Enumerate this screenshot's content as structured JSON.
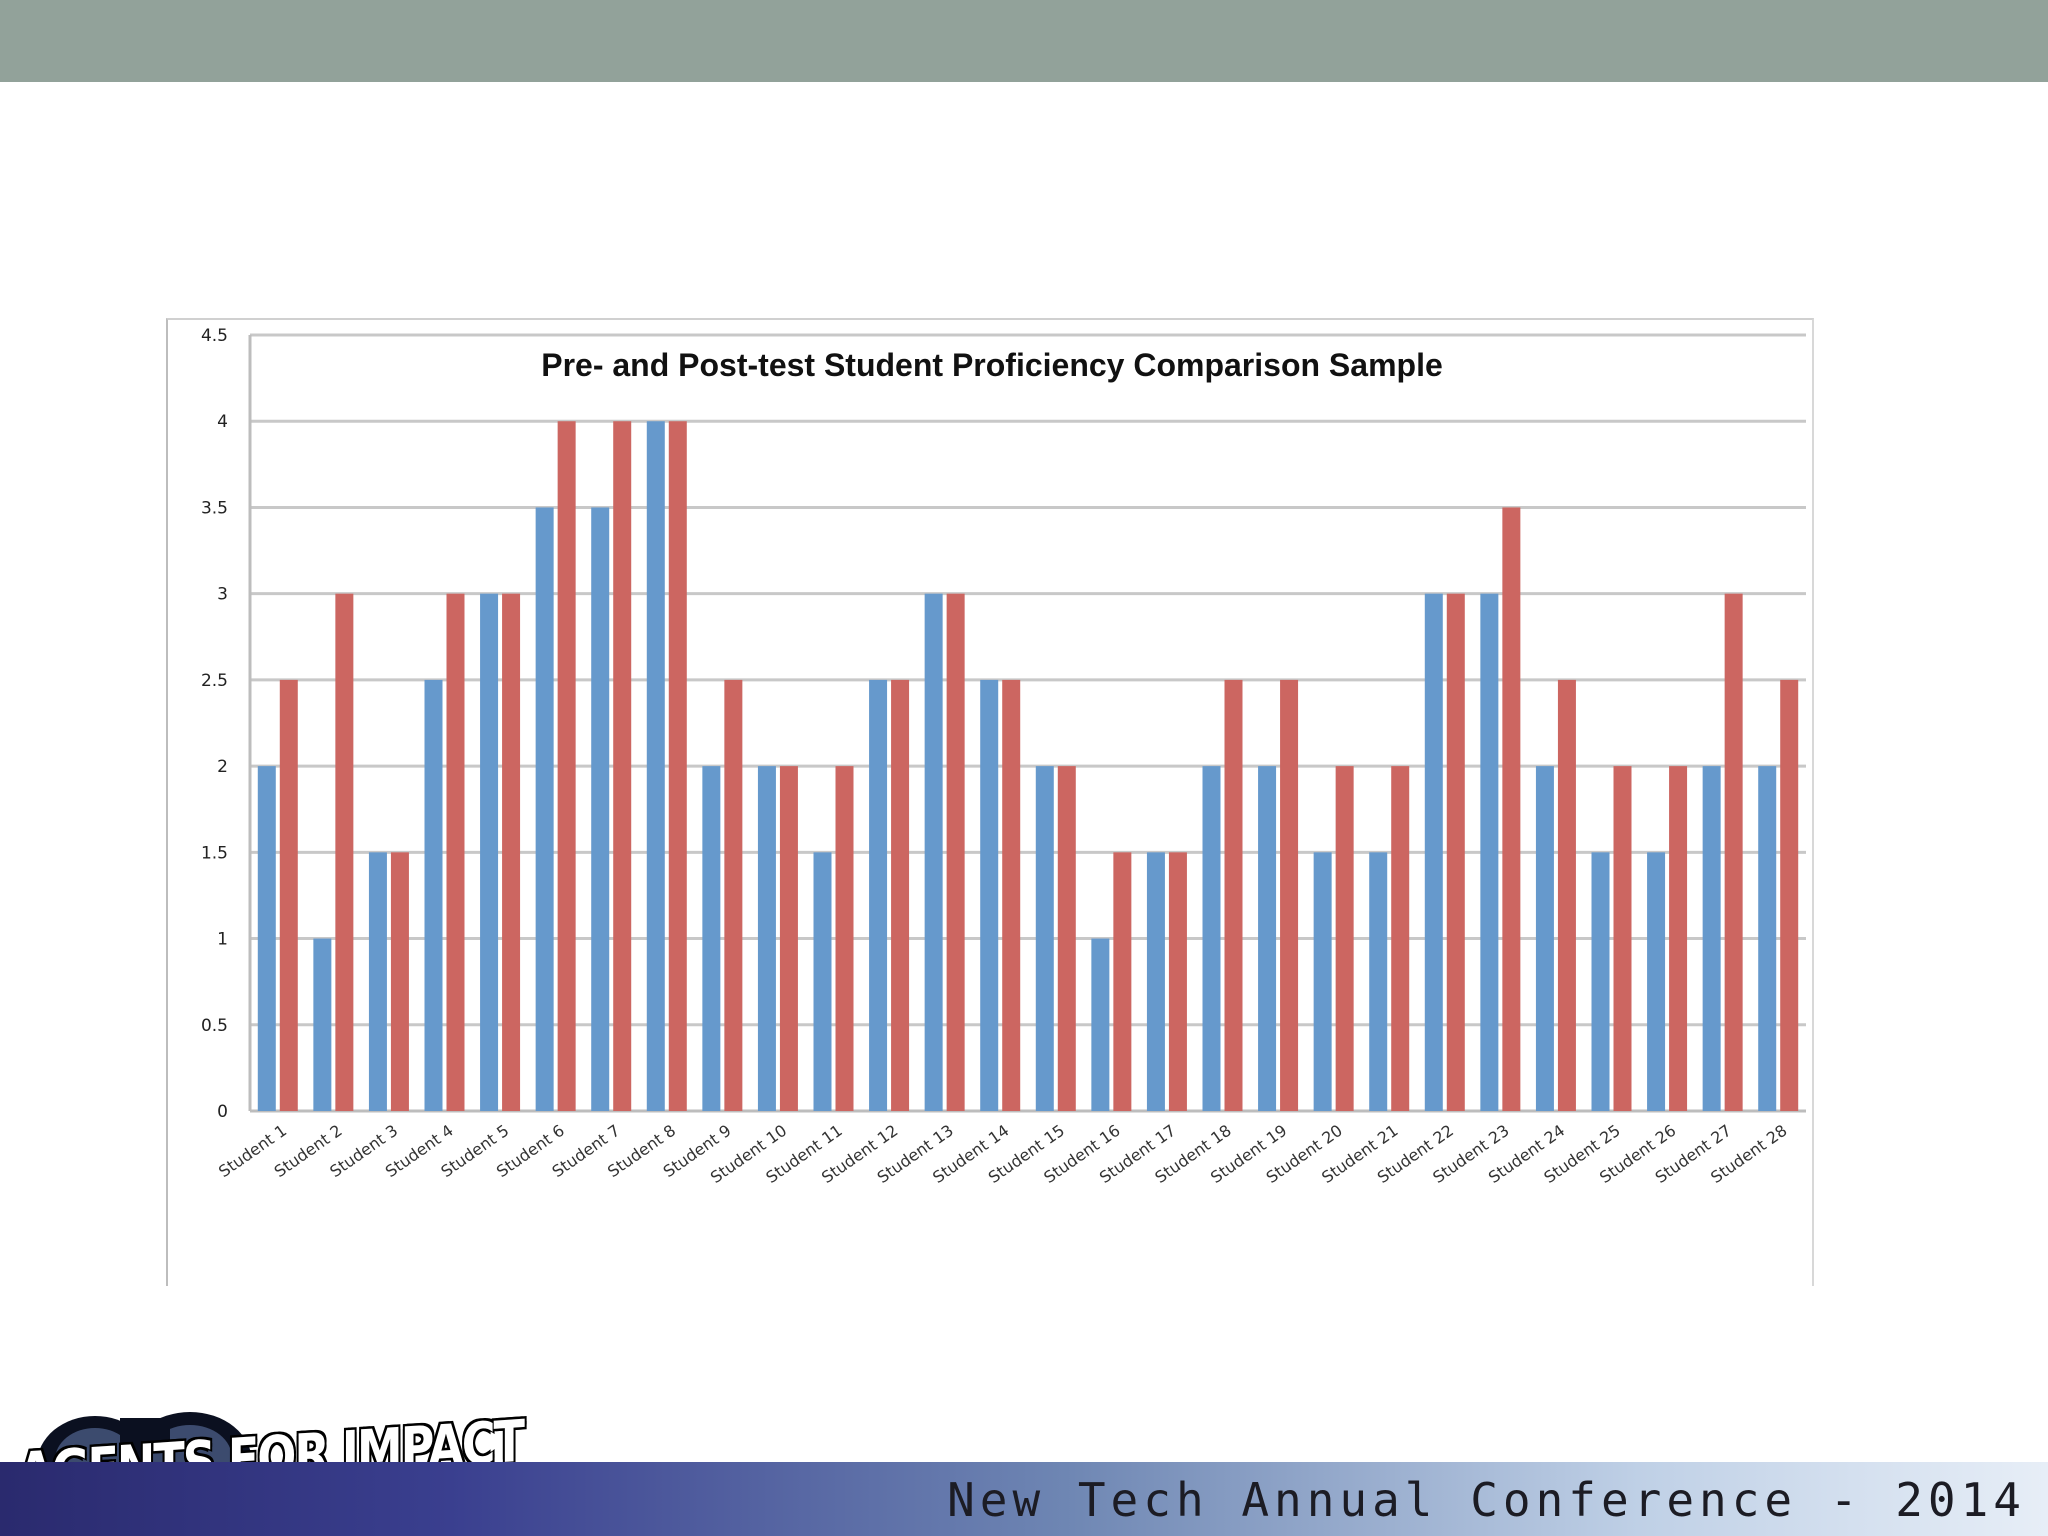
{
  "chart_data": {
    "type": "bar",
    "title": "Pre- and Post-test Student Proficiency Comparison Sample",
    "xlabel": "",
    "ylabel": "",
    "ylim": [
      0,
      4.5
    ],
    "yticks": [
      "0",
      "0.5",
      "1",
      "1.5",
      "2",
      "2.5",
      "3",
      "3.5",
      "4",
      "4.5"
    ],
    "grid": true,
    "legend": "none",
    "categories": [
      "Student 1",
      "Student 2",
      "Student 3",
      "Student 4",
      "Student 5",
      "Student 6",
      "Student 7",
      "Student 8",
      "Student 9",
      "Student 10",
      "Student 11",
      "Student 12",
      "Student 13",
      "Student 14",
      "Student 15",
      "Student 16",
      "Student 17",
      "Student 18",
      "Student 19",
      "Student 20",
      "Student 21",
      "Student 22",
      "Student 23",
      "Student 24",
      "Student 25",
      "Student 26",
      "Student 27",
      "Student 28"
    ],
    "series": [
      {
        "color": "#6699cc",
        "values": [
          2,
          1,
          1.5,
          2.5,
          3,
          3.5,
          3.5,
          4,
          2,
          2,
          1.5,
          2.5,
          3,
          2.5,
          2,
          1,
          1.5,
          2,
          2,
          1.5,
          1.5,
          3,
          3,
          2,
          1.5,
          1.5,
          2,
          2
        ]
      },
      {
        "color": "#cc6661",
        "values": [
          2.5,
          3,
          1.5,
          3,
          3,
          4,
          4,
          4,
          2.5,
          2,
          2,
          2.5,
          3,
          2.5,
          2,
          1.5,
          1.5,
          2.5,
          2.5,
          2,
          2,
          3,
          3.5,
          2.5,
          2,
          2,
          3,
          2.5
        ]
      }
    ]
  },
  "footer": {
    "conference": "New Tech Annual Conference - 2014",
    "logo_text": "AGENTS FOR IMPACT"
  },
  "colors": {
    "top_bar": "#92a29a",
    "gridline": "#c8c8c8"
  }
}
